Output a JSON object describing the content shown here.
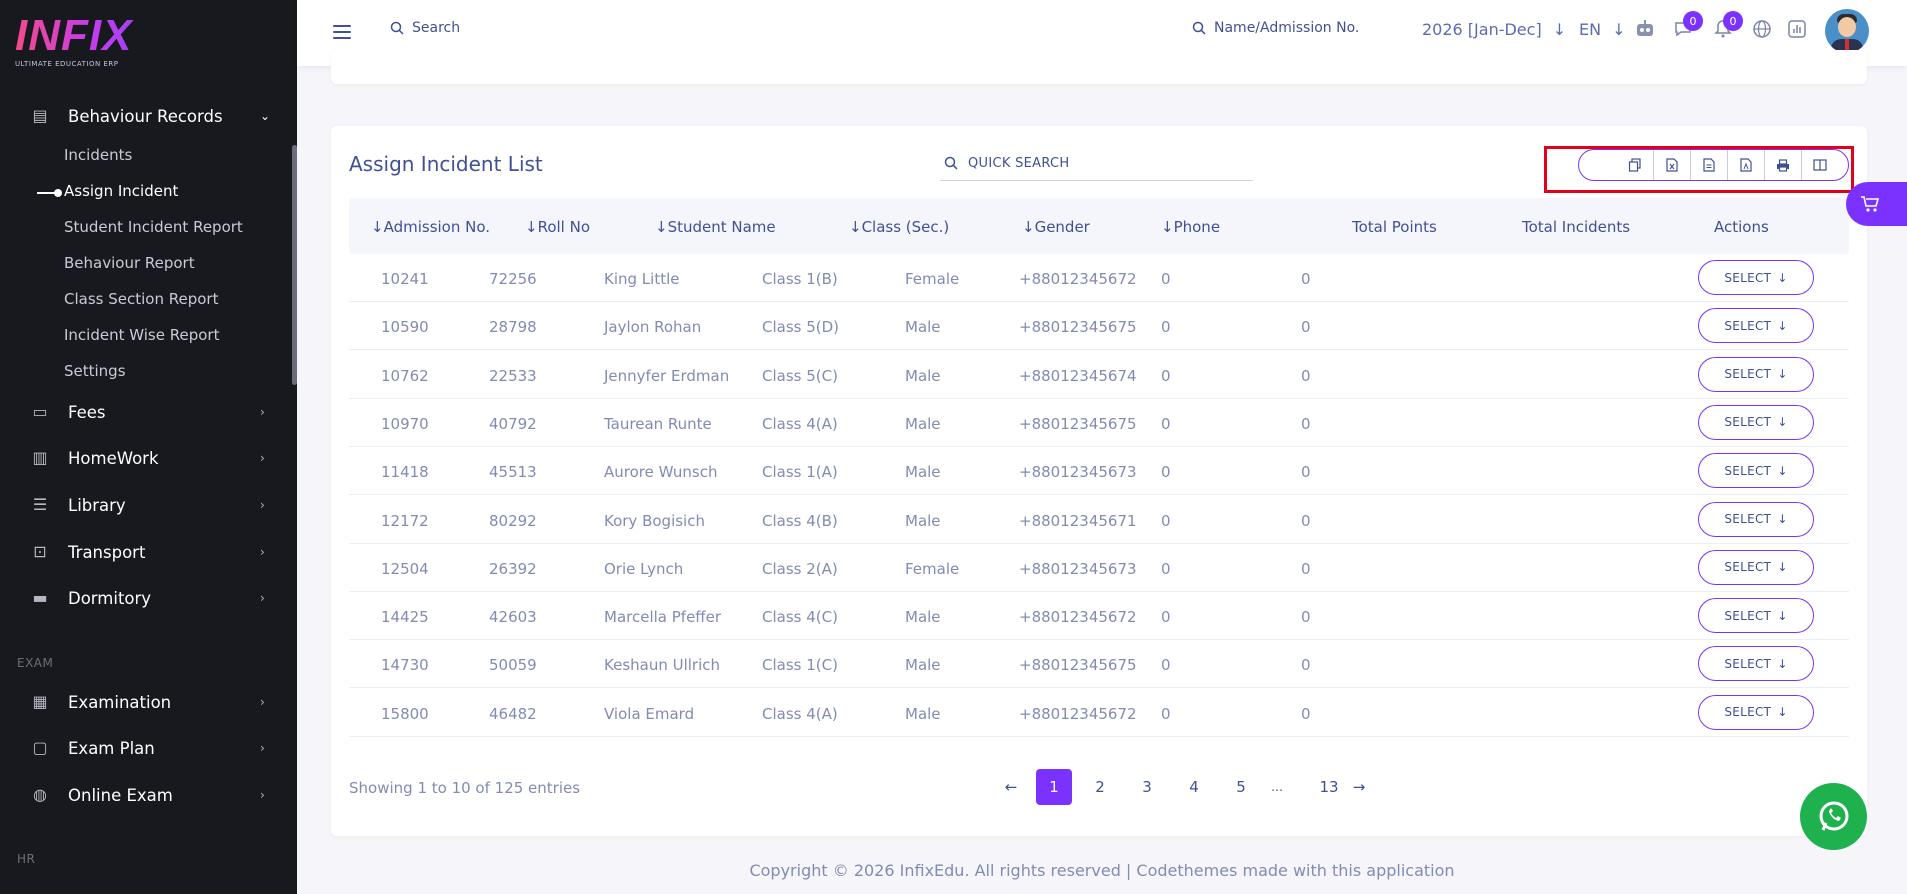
{
  "brand": {
    "name": "INFIX",
    "tagline": "ULTIMATE EDUCATION ERP"
  },
  "sidebar": {
    "group": {
      "label": "Behaviour Records",
      "icon": "behaviour-icon"
    },
    "sub_items": [
      {
        "label": "Incidents"
      },
      {
        "label": "Assign Incident"
      },
      {
        "label": "Student Incident Report"
      },
      {
        "label": "Behaviour Report"
      },
      {
        "label": "Class Section Report"
      },
      {
        "label": "Incident Wise Report"
      },
      {
        "label": "Settings"
      }
    ],
    "menu": [
      {
        "label": "Fees",
        "icon": "fees-icon"
      },
      {
        "label": "HomeWork",
        "icon": "book-icon"
      },
      {
        "label": "Library",
        "icon": "library-icon"
      },
      {
        "label": "Transport",
        "icon": "bus-icon"
      },
      {
        "label": "Dormitory",
        "icon": "bed-icon"
      }
    ],
    "section_exam": "EXAM",
    "exam_menu": [
      {
        "label": "Examination",
        "icon": "map-icon"
      },
      {
        "label": "Exam Plan",
        "icon": "clipboard-icon"
      },
      {
        "label": "Online Exam",
        "icon": "globe-icon"
      }
    ],
    "section_hr": "HR"
  },
  "topbar": {
    "search_label": "Search",
    "student_search_label": "Name/Admission No.",
    "year": "2026 [Jan-Dec]",
    "language": "EN",
    "chat_badge": "0",
    "notification_badge": "0"
  },
  "panel": {
    "title": "Assign Incident List",
    "quick_search": "QUICK SEARCH",
    "export_icons": [
      "copy-icon",
      "excel-icon",
      "csv-icon",
      "pdf-icon",
      "print-icon",
      "columns-icon"
    ]
  },
  "table": {
    "headers": [
      "Admission No.",
      "Roll No",
      "Student Name",
      "Class (Sec.)",
      "Gender",
      "Phone",
      "Total Points",
      "Total Incidents",
      "Actions"
    ],
    "sortable": [
      true,
      true,
      true,
      true,
      true,
      true,
      false,
      false,
      false
    ],
    "rows": [
      {
        "admission": "10241",
        "roll": "72256",
        "name": "King Little",
        "class": "Class 1(B)",
        "gender": "Female",
        "phone": "+88012345672",
        "points": "0",
        "incidents": "0",
        "action": "SELECT"
      },
      {
        "admission": "10590",
        "roll": "28798",
        "name": "Jaylon Rohan",
        "class": "Class 5(D)",
        "gender": "Male",
        "phone": "+88012345675",
        "points": "0",
        "incidents": "0",
        "action": "SELECT"
      },
      {
        "admission": "10762",
        "roll": "22533",
        "name": "Jennyfer Erdman",
        "class": "Class 5(C)",
        "gender": "Male",
        "phone": "+88012345674",
        "points": "0",
        "incidents": "0",
        "action": "SELECT"
      },
      {
        "admission": "10970",
        "roll": "40792",
        "name": "Taurean Runte",
        "class": "Class 4(A)",
        "gender": "Male",
        "phone": "+88012345675",
        "points": "0",
        "incidents": "0",
        "action": "SELECT"
      },
      {
        "admission": "11418",
        "roll": "45513",
        "name": "Aurore Wunsch",
        "class": "Class 1(A)",
        "gender": "Male",
        "phone": "+88012345673",
        "points": "0",
        "incidents": "0",
        "action": "SELECT"
      },
      {
        "admission": "12172",
        "roll": "80292",
        "name": "Kory Bogisich",
        "class": "Class 4(B)",
        "gender": "Male",
        "phone": "+88012345671",
        "points": "0",
        "incidents": "0",
        "action": "SELECT"
      },
      {
        "admission": "12504",
        "roll": "26392",
        "name": "Orie Lynch",
        "class": "Class 2(A)",
        "gender": "Female",
        "phone": "+88012345673",
        "points": "0",
        "incidents": "0",
        "action": "SELECT"
      },
      {
        "admission": "14425",
        "roll": "42603",
        "name": "Marcella Pfeffer",
        "class": "Class 4(C)",
        "gender": "Male",
        "phone": "+88012345672",
        "points": "0",
        "incidents": "0",
        "action": "SELECT"
      },
      {
        "admission": "14730",
        "roll": "50059",
        "name": "Keshaun Ullrich",
        "class": "Class 1(C)",
        "gender": "Male",
        "phone": "+88012345675",
        "points": "0",
        "incidents": "0",
        "action": "SELECT"
      },
      {
        "admission": "15800",
        "roll": "46482",
        "name": "Viola Emard",
        "class": "Class 4(A)",
        "gender": "Male",
        "phone": "+88012345672",
        "points": "0",
        "incidents": "0",
        "action": "SELECT"
      }
    ]
  },
  "pagination": {
    "info": "Showing 1 to 10 of 125 entries",
    "pages": [
      "1",
      "2",
      "3",
      "4",
      "5",
      "…",
      "13"
    ],
    "current": "1"
  },
  "footer": {
    "copyright": "Copyright © 2026 InfixEdu. All rights reserved | Codethemes made with this application"
  },
  "colors": {
    "accent": "#7c32ff",
    "sidebar_bg": "#18191e",
    "text_primary": "#415094",
    "text_muted": "#828bb2",
    "highlight": "#e3001b",
    "whatsapp": "#1fb14d"
  }
}
